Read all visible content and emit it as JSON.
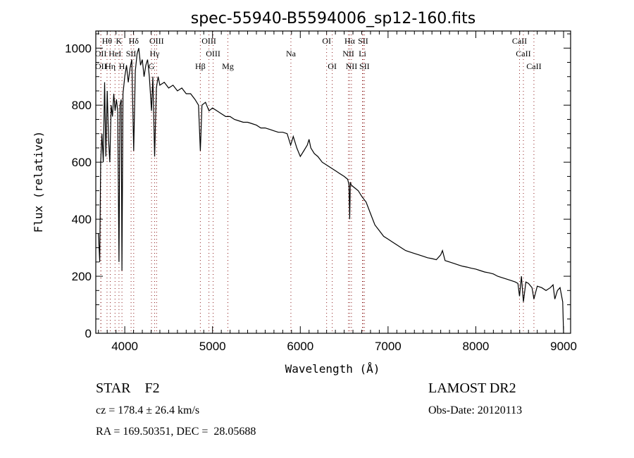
{
  "chart_data": {
    "type": "line",
    "title": "spec-55940-B5594006_sp12-160.fits",
    "xlabel": "Wavelength (Å)",
    "ylabel": "Flux (relative)",
    "xlim": [
      3670,
      9080
    ],
    "ylim": [
      0,
      1060
    ],
    "xticks": [
      4000,
      5000,
      6000,
      7000,
      8000,
      9000
    ],
    "yticks": [
      0,
      200,
      400,
      600,
      800,
      1000
    ],
    "grid": false,
    "line_color": "#000000",
    "marker_color": "#8b1a1a",
    "spectral_lines": [
      {
        "label": "Hθ",
        "wave": 3798,
        "row": 0
      },
      {
        "label": "K",
        "wave": 3934,
        "row": 0
      },
      {
        "label": "Hδ",
        "wave": 4102,
        "row": 0
      },
      {
        "label": "OIII",
        "wave": 4363,
        "row": 0
      },
      {
        "label": "OIII",
        "wave": 4959,
        "row": 0
      },
      {
        "label": "OI",
        "wave": 6300,
        "row": 0
      },
      {
        "label": "Hα",
        "wave": 6563,
        "row": 0
      },
      {
        "label": "SII",
        "wave": 6716,
        "row": 0
      },
      {
        "label": "CaII",
        "wave": 8498,
        "row": 0
      },
      {
        "label": "OII",
        "wave": 3727,
        "row": 1
      },
      {
        "label": "HeI",
        "wave": 3889,
        "row": 1
      },
      {
        "label": "SII",
        "wave": 4072,
        "row": 1
      },
      {
        "label": "Hγ",
        "wave": 4340,
        "row": 1
      },
      {
        "label": "OIII",
        "wave": 5007,
        "row": 1
      },
      {
        "label": "Na",
        "wave": 5893,
        "row": 1
      },
      {
        "label": "NII",
        "wave": 6548,
        "row": 1
      },
      {
        "label": "Li",
        "wave": 6708,
        "row": 1
      },
      {
        "label": "CaII",
        "wave": 8542,
        "row": 1
      },
      {
        "label": "OII",
        "wave": 3729,
        "row": 2
      },
      {
        "label": "Hη",
        "wave": 3835,
        "row": 2
      },
      {
        "label": "H",
        "wave": 3968,
        "row": 2
      },
      {
        "label": "G",
        "wave": 4305,
        "row": 2
      },
      {
        "label": "Hβ",
        "wave": 4861,
        "row": 2
      },
      {
        "label": "Mg",
        "wave": 5175,
        "row": 2
      },
      {
        "label": "OI",
        "wave": 6364,
        "row": 2
      },
      {
        "label": "NII",
        "wave": 6583,
        "row": 2
      },
      {
        "label": "SII",
        "wave": 6731,
        "row": 2
      },
      {
        "label": "CaII",
        "wave": 8662,
        "row": 2
      }
    ],
    "x": [
      3700,
      3715,
      3725,
      3740,
      3755,
      3770,
      3785,
      3800,
      3815,
      3830,
      3845,
      3860,
      3875,
      3890,
      3905,
      3920,
      3934,
      3945,
      3960,
      3968,
      3980,
      4000,
      4020,
      4040,
      4060,
      4080,
      4102,
      4120,
      4140,
      4160,
      4180,
      4200,
      4220,
      4240,
      4260,
      4280,
      4305,
      4320,
      4340,
      4360,
      4380,
      4400,
      4450,
      4500,
      4550,
      4600,
      4650,
      4700,
      4750,
      4800,
      4840,
      4861,
      4880,
      4920,
      4960,
      5000,
      5050,
      5100,
      5150,
      5200,
      5250,
      5300,
      5350,
      5400,
      5450,
      5500,
      5550,
      5600,
      5650,
      5700,
      5750,
      5800,
      5850,
      5890,
      5920,
      5960,
      6000,
      6040,
      6080,
      6100,
      6120,
      6160,
      6200,
      6250,
      6300,
      6350,
      6400,
      6450,
      6500,
      6540,
      6555,
      6563,
      6570,
      6580,
      6620,
      6660,
      6700,
      6750,
      6800,
      6850,
      6900,
      6950,
      7000,
      7050,
      7100,
      7150,
      7200,
      7250,
      7300,
      7350,
      7400,
      7450,
      7500,
      7550,
      7600,
      7620,
      7650,
      7700,
      7750,
      7800,
      7850,
      7900,
      7950,
      8000,
      8050,
      8100,
      8150,
      8200,
      8250,
      8300,
      8350,
      8400,
      8450,
      8480,
      8498,
      8520,
      8542,
      8570,
      8600,
      8640,
      8662,
      8700,
      8750,
      8800,
      8850,
      8880,
      8900,
      8930,
      8960,
      8990,
      9000
    ],
    "y": [
      350,
      250,
      600,
      700,
      600,
      880,
      620,
      850,
      680,
      600,
      800,
      760,
      840,
      780,
      820,
      780,
      250,
      800,
      820,
      220,
      840,
      900,
      940,
      880,
      930,
      960,
      640,
      920,
      980,
      1000,
      940,
      960,
      900,
      940,
      960,
      900,
      780,
      900,
      620,
      860,
      900,
      870,
      880,
      860,
      870,
      850,
      860,
      840,
      840,
      820,
      800,
      640,
      800,
      810,
      780,
      790,
      780,
      770,
      760,
      760,
      750,
      745,
      740,
      740,
      735,
      730,
      720,
      720,
      715,
      710,
      705,
      705,
      700,
      660,
      690,
      650,
      620,
      640,
      660,
      680,
      650,
      630,
      620,
      600,
      590,
      580,
      570,
      560,
      550,
      540,
      520,
      400,
      530,
      520,
      510,
      500,
      480,
      460,
      420,
      380,
      360,
      340,
      330,
      320,
      310,
      300,
      290,
      285,
      280,
      275,
      270,
      265,
      262,
      258,
      275,
      290,
      255,
      250,
      245,
      240,
      235,
      232,
      228,
      225,
      220,
      215,
      212,
      208,
      200,
      195,
      190,
      185,
      180,
      175,
      130,
      200,
      110,
      180,
      175,
      160,
      120,
      165,
      160,
      150,
      160,
      170,
      120,
      150,
      160,
      110,
      0
    ]
  },
  "footer": {
    "object": "STAR    F2",
    "cz": "cz = 178.4 ± 26.4 km/s",
    "coords": "RA = 169.50351, DEC =  28.05688",
    "survey": "LAMOST DR2",
    "obs_date": "Obs-Date: 20120113"
  }
}
